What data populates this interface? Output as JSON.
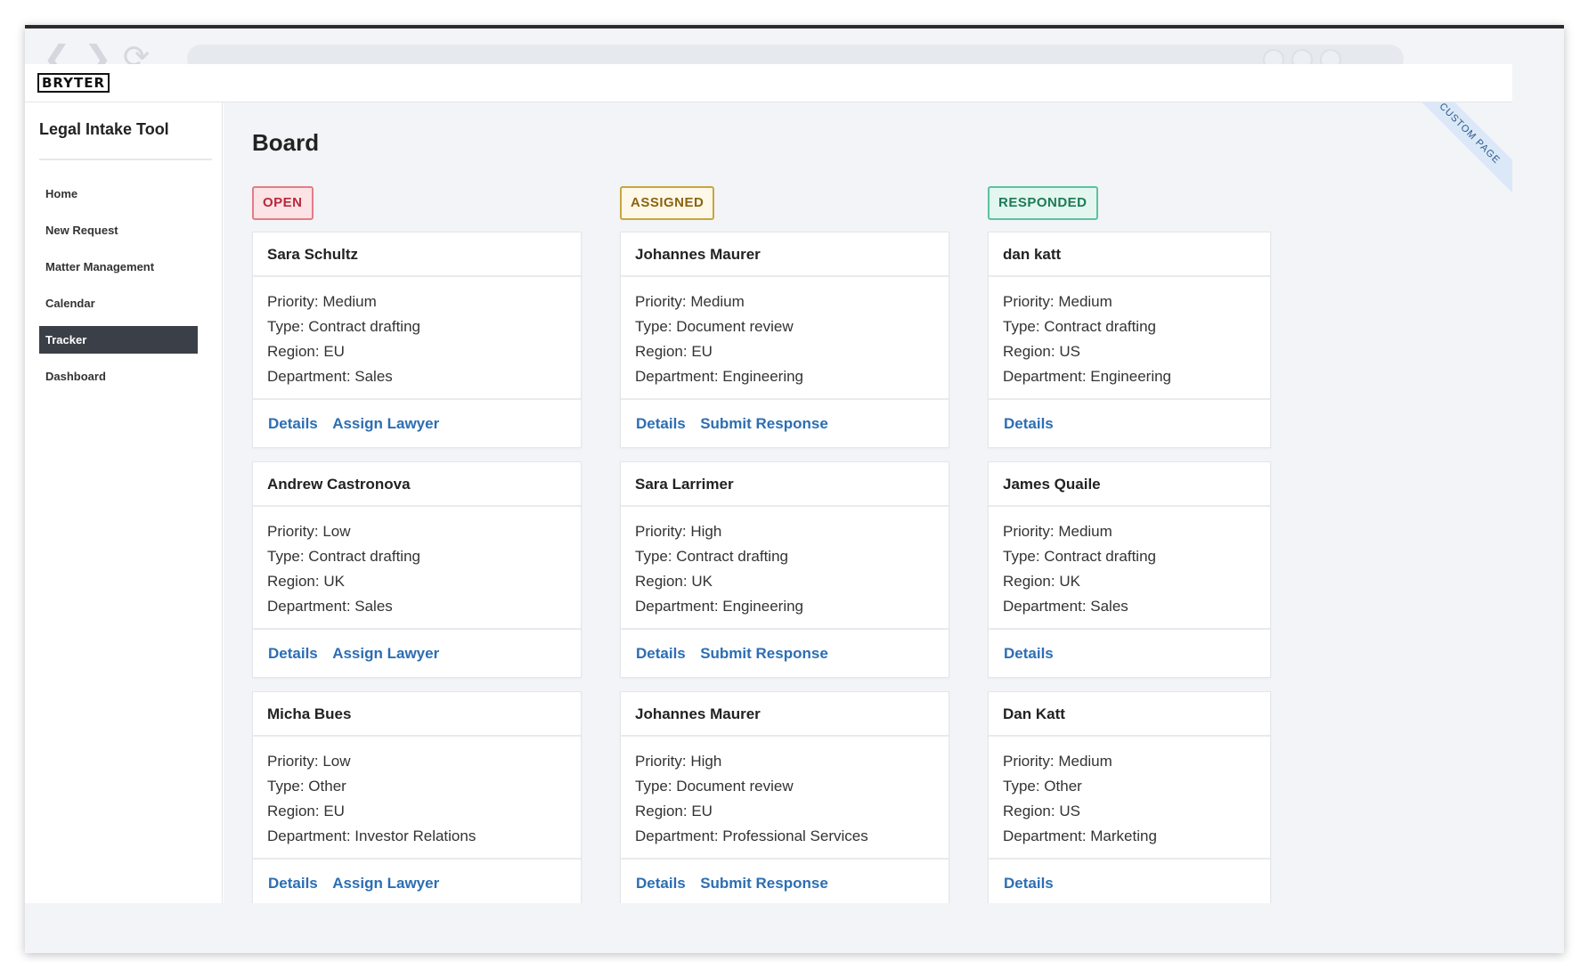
{
  "browser": {
    "back_glyph": "❮",
    "forward_glyph": "❯",
    "reload_glyph": "⟳",
    "icons": [
      "chevron-left-icon",
      "chevron-right-icon",
      "reload-icon"
    ]
  },
  "app": {
    "logo": "BRYTER",
    "title": "Legal Intake Tool"
  },
  "sidebar": {
    "items": [
      {
        "label": "Home"
      },
      {
        "label": "New Request"
      },
      {
        "label": "Matter Management"
      },
      {
        "label": "Calendar"
      },
      {
        "label": "Tracker",
        "active": true
      },
      {
        "label": "Dashboard"
      }
    ]
  },
  "main": {
    "title": "Board",
    "ribbon": "CUSTOM PAGE",
    "columns": [
      {
        "status": "OPEN",
        "cards": [
          {
            "name": "Sara Schultz",
            "priority": "Priority: Medium",
            "type": "Type: Contract drafting",
            "region": "Region: EU",
            "department": "Department: Sales",
            "actions": [
              "Details",
              "Assign Lawyer"
            ]
          },
          {
            "name": "Andrew Castronova",
            "priority": "Priority: Low",
            "type": "Type: Contract drafting",
            "region": "Region: UK",
            "department": "Department: Sales",
            "actions": [
              "Details",
              "Assign Lawyer"
            ]
          },
          {
            "name": "Micha Bues",
            "priority": "Priority: Low",
            "type": "Type: Other",
            "region": "Region: EU",
            "department": "Department: Investor Relations",
            "actions": [
              "Details",
              "Assign Lawyer"
            ]
          }
        ]
      },
      {
        "status": "ASSIGNED",
        "cards": [
          {
            "name": "Johannes Maurer",
            "priority": "Priority: Medium",
            "type": "Type: Document review",
            "region": "Region: EU",
            "department": "Department: Engineering",
            "actions": [
              "Details",
              "Submit Response"
            ]
          },
          {
            "name": "Sara Larrimer",
            "priority": "Priority: High",
            "type": "Type: Contract drafting",
            "region": "Region: UK",
            "department": "Department: Engineering",
            "actions": [
              "Details",
              "Submit Response"
            ]
          },
          {
            "name": "Johannes Maurer",
            "priority": "Priority: High",
            "type": "Type: Document review",
            "region": "Region: EU",
            "department": "Department: Professional Services",
            "actions": [
              "Details",
              "Submit Response"
            ]
          }
        ]
      },
      {
        "status": "RESPONDED",
        "cards": [
          {
            "name": "dan katt",
            "priority": "Priority: Medium",
            "type": "Type: Contract drafting",
            "region": "Region: US",
            "department": "Department: Engineering",
            "actions": [
              "Details"
            ]
          },
          {
            "name": "James Quaile",
            "priority": "Priority: Medium",
            "type": "Type: Contract drafting",
            "region": "Region: UK",
            "department": "Department: Sales",
            "actions": [
              "Details"
            ]
          },
          {
            "name": "Dan Katt",
            "priority": "Priority: Medium",
            "type": "Type: Other",
            "region": "Region: US",
            "department": "Department: Marketing",
            "actions": [
              "Details"
            ]
          }
        ]
      }
    ]
  }
}
